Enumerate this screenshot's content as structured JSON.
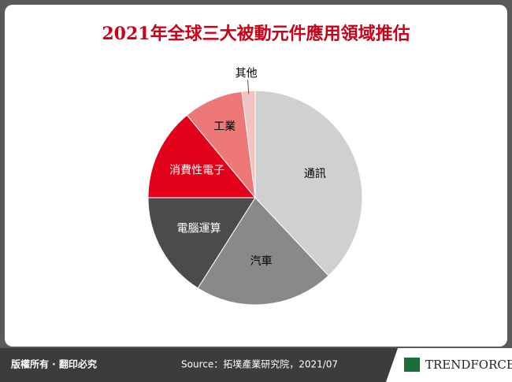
{
  "chart_data": {
    "type": "pie",
    "title": "2021年全球三大被動元件應用領域推估",
    "categories": [
      "通訊",
      "汽車",
      "電腦運算",
      "消費性電子",
      "工業",
      "其他"
    ],
    "values": [
      38,
      21,
      16,
      14,
      9,
      2
    ],
    "colors": [
      "#d0d0d0",
      "#898989",
      "#4b4b4b",
      "#e3001b",
      "#ee7878",
      "#f3c3c3"
    ]
  },
  "footer": {
    "copyright": "版權所有 · 翻印必究",
    "source": "Source：拓墣產業研究院，2021/07",
    "logo": "TRENDFORCE"
  }
}
